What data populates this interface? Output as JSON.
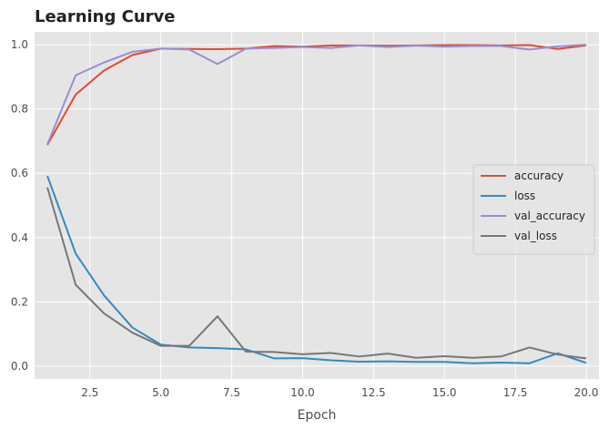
{
  "chart_data": {
    "type": "line",
    "title": "Learning Curve",
    "xlabel": "Epoch",
    "ylabel": "",
    "xlim": [
      0.55,
      20.45
    ],
    "ylim": [
      -0.04,
      1.04
    ],
    "x_ticks": [
      2.5,
      5.0,
      7.5,
      10.0,
      12.5,
      15.0,
      17.5,
      20.0
    ],
    "x_tick_labels": [
      "2.5",
      "5.0",
      "7.5",
      "10.0",
      "12.5",
      "15.0",
      "17.5",
      "20.0"
    ],
    "y_ticks": [
      0.0,
      0.2,
      0.4,
      0.6,
      0.8,
      1.0
    ],
    "y_tick_labels": [
      "0.0",
      "0.2",
      "0.4",
      "0.6",
      "0.8",
      "1.0"
    ],
    "grid": true,
    "legend_position": "center-right",
    "x": [
      1,
      2,
      3,
      4,
      5,
      6,
      7,
      8,
      9,
      10,
      11,
      12,
      13,
      14,
      15,
      16,
      17,
      18,
      19,
      20
    ],
    "series": [
      {
        "name": "accuracy",
        "color": "#E24A33",
        "values": [
          0.688,
          0.845,
          0.92,
          0.968,
          0.988,
          0.987,
          0.986,
          0.988,
          0.996,
          0.994,
          0.998,
          0.998,
          0.997,
          0.998,
          0.999,
          0.999,
          0.998,
          0.999,
          0.987,
          0.998
        ]
      },
      {
        "name": "loss",
        "color": "#348ABD",
        "values": [
          0.592,
          0.35,
          0.22,
          0.12,
          0.067,
          0.058,
          0.056,
          0.052,
          0.024,
          0.025,
          0.018,
          0.014,
          0.015,
          0.013,
          0.013,
          0.009,
          0.011,
          0.009,
          0.04,
          0.01
        ]
      },
      {
        "name": "val_accuracy",
        "color": "#988ED5",
        "values": [
          0.69,
          0.905,
          0.945,
          0.978,
          0.988,
          0.985,
          0.94,
          0.988,
          0.99,
          0.993,
          0.99,
          0.998,
          0.993,
          0.997,
          0.994,
          0.996,
          0.996,
          0.985,
          0.995,
          1.0
        ]
      },
      {
        "name": "val_loss",
        "color": "#777777",
        "values": [
          0.556,
          0.253,
          0.164,
          0.104,
          0.063,
          0.063,
          0.155,
          0.045,
          0.044,
          0.037,
          0.041,
          0.03,
          0.039,
          0.026,
          0.031,
          0.026,
          0.03,
          0.058,
          0.036,
          0.024
        ]
      }
    ]
  }
}
